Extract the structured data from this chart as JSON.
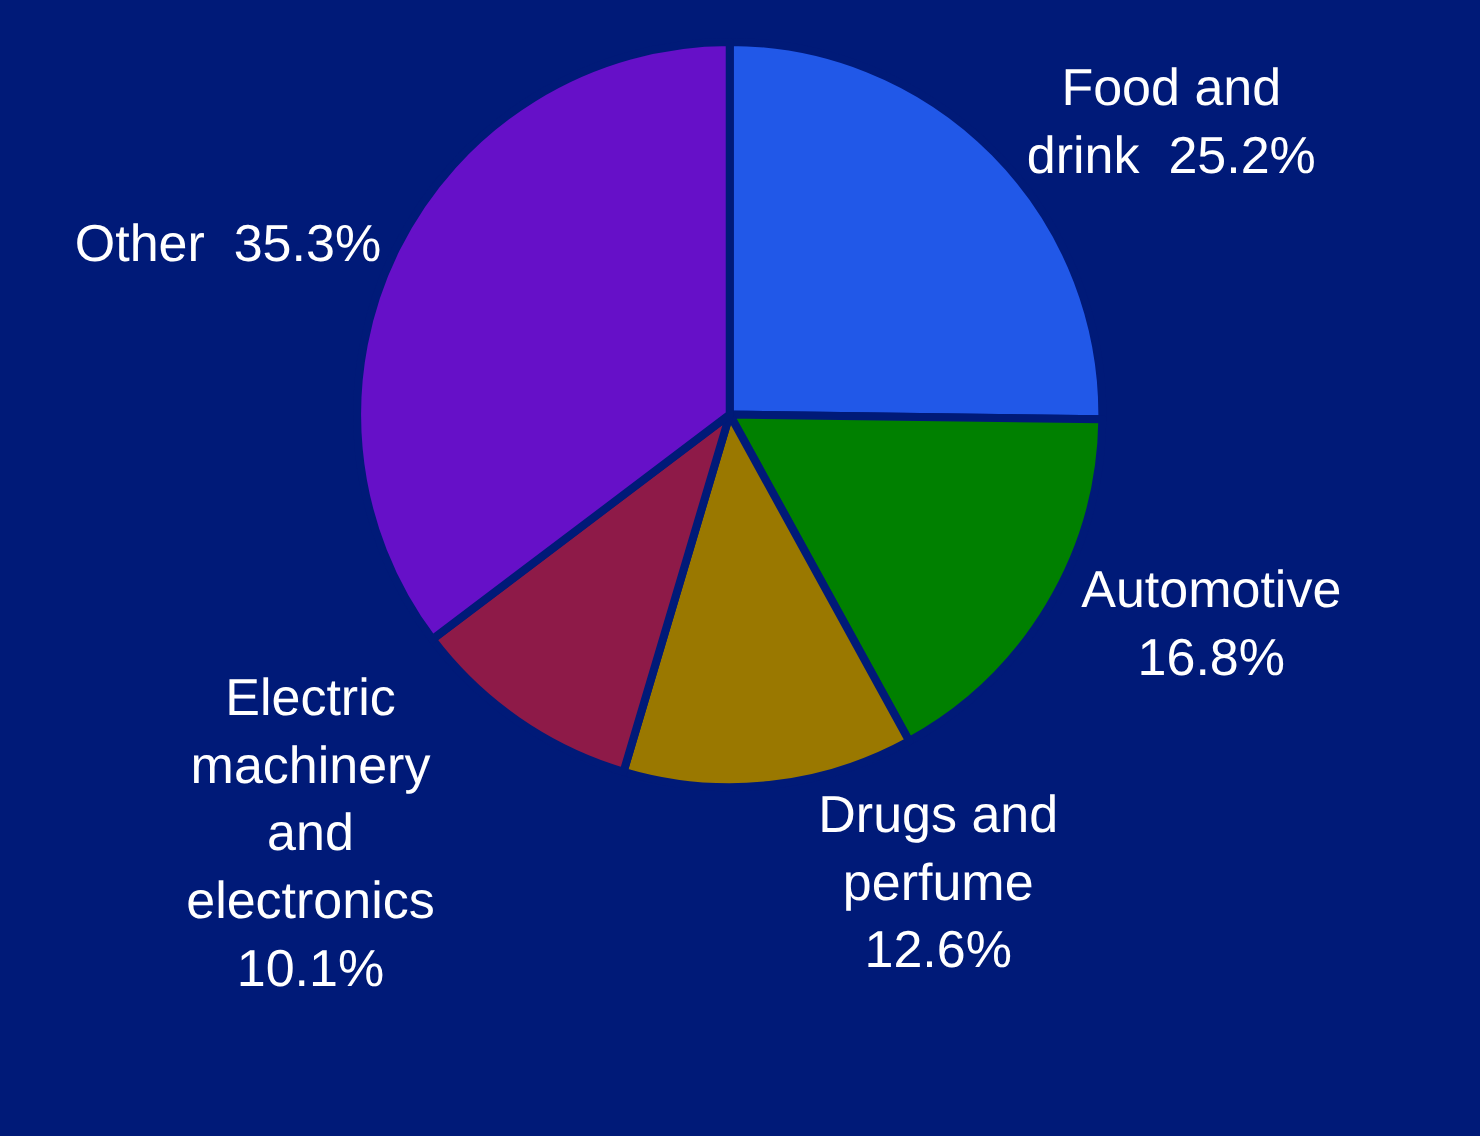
{
  "chart_data": {
    "type": "pie",
    "categories": [
      "Food and drink",
      "Automotive",
      "Drugs and perfume",
      "Electric machinery and electronics",
      "Other"
    ],
    "values": [
      25.2,
      16.8,
      12.6,
      10.1,
      35.3
    ],
    "value_labels": [
      "25.2%",
      "16.8%",
      "12.6%",
      "10.1%",
      "35.3%"
    ],
    "colors": [
      "#2158e8",
      "#008000",
      "#9a7800",
      "#8e1a48",
      "#6610c8"
    ],
    "legend": false
  }
}
